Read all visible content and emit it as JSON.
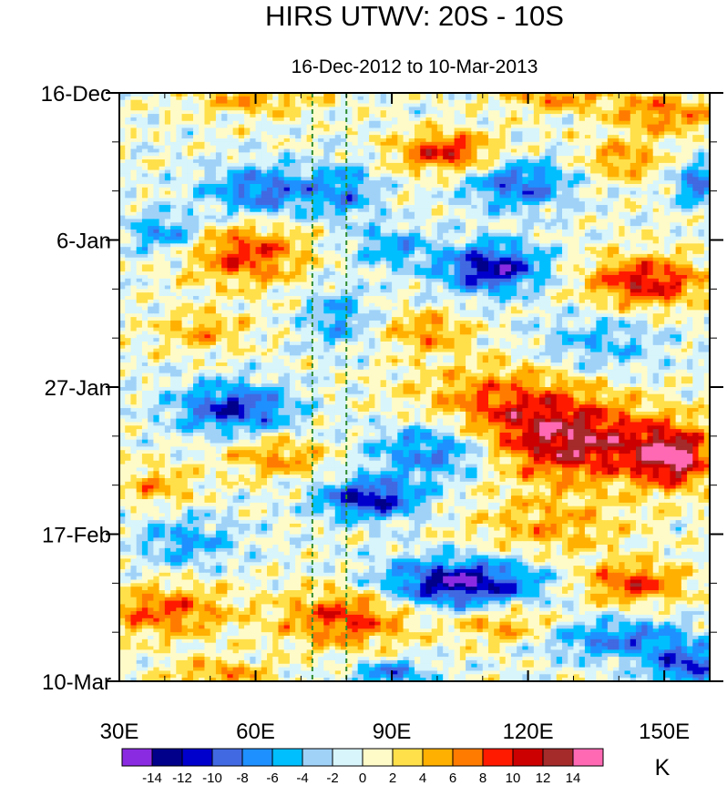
{
  "chart_data": {
    "type": "heatmap",
    "title": "HIRS UTWV: 20S - 10S",
    "subtitle": "16-Dec-2012 to 10-Mar-2013",
    "x_axis": {
      "label": "",
      "range": [
        30,
        160
      ],
      "ticks": [
        {
          "value": 30,
          "label": "30E"
        },
        {
          "value": 60,
          "label": "60E"
        },
        {
          "value": 90,
          "label": "90E"
        },
        {
          "value": 120,
          "label": "120E"
        },
        {
          "value": 150,
          "label": "150E"
        }
      ]
    },
    "y_axis": {
      "label": "",
      "range_days": [
        0,
        84
      ],
      "direction": "time increases downward",
      "ticks": [
        {
          "value": 0,
          "label": "16-Dec"
        },
        {
          "value": 21,
          "label": "6-Jan"
        },
        {
          "value": 42,
          "label": "27-Jan"
        },
        {
          "value": 63,
          "label": "17-Feb"
        },
        {
          "value": 84,
          "label": "10-Mar"
        }
      ]
    },
    "reference_lines": [
      {
        "axis": "x",
        "value": 72.5,
        "style": "dashed",
        "color": "#2e8b2e"
      },
      {
        "axis": "x",
        "value": 80,
        "style": "dashed",
        "color": "#2e8b2e"
      }
    ],
    "colorbar": {
      "unit": "K",
      "levels": [
        -14,
        -12,
        -10,
        -8,
        -6,
        -4,
        -2,
        0,
        2,
        4,
        6,
        8,
        10,
        12,
        14
      ],
      "colors": [
        "#8a2be2",
        "#00008b",
        "#0000cd",
        "#4169e1",
        "#1e90ff",
        "#00bfff",
        "#a0d2f8",
        "#d7f5fb",
        "#fffbc8",
        "#ffe04a",
        "#ffb000",
        "#ff7b00",
        "#ff1a00",
        "#cc0000",
        "#a52a2a",
        "#ff69b4"
      ],
      "tick_labels": [
        "-14",
        "-12",
        "-10",
        "-8",
        "-6",
        "-4",
        "-2",
        "0",
        "2",
        "4",
        "6",
        "8",
        "10",
        "12",
        "14"
      ]
    },
    "features": [
      {
        "lon": 127,
        "day": 0.5,
        "amp": 6,
        "sx": 9,
        "sy": 1.5
      },
      {
        "lon": 150,
        "day": 3,
        "amp": 7,
        "sx": 8,
        "sy": 2
      },
      {
        "lon": 60,
        "day": 1,
        "amp": 5,
        "sx": 10,
        "sy": 1.5
      },
      {
        "lon": 102,
        "day": 8.5,
        "amp": 10,
        "sx": 8,
        "sy": 2
      },
      {
        "lon": 141,
        "day": 9.5,
        "amp": 6,
        "sx": 6,
        "sy": 2
      },
      {
        "lon": 62,
        "day": 14,
        "amp": -9,
        "sx": 9,
        "sy": 2.5
      },
      {
        "lon": 80,
        "day": 14,
        "amp": -6,
        "sx": 5,
        "sy": 3
      },
      {
        "lon": 118,
        "day": 13,
        "amp": -9,
        "sx": 8,
        "sy": 2.5
      },
      {
        "lon": 158,
        "day": 13,
        "amp": -9,
        "sx": 4,
        "sy": 2
      },
      {
        "lon": 40,
        "day": 20,
        "amp": -7,
        "sx": 6,
        "sy": 2
      },
      {
        "lon": 58,
        "day": 23,
        "amp": 9,
        "sx": 9,
        "sy": 3
      },
      {
        "lon": 112,
        "day": 25,
        "amp": -13,
        "sx": 8,
        "sy": 2.5
      },
      {
        "lon": 146,
        "day": 27,
        "amp": 11,
        "sx": 9,
        "sy": 2.5
      },
      {
        "lon": 90,
        "day": 22,
        "amp": -6,
        "sx": 6,
        "sy": 2
      },
      {
        "lon": 78,
        "day": 32,
        "amp": -6,
        "sx": 5,
        "sy": 3
      },
      {
        "lon": 98,
        "day": 34,
        "amp": 6,
        "sx": 6,
        "sy": 2
      },
      {
        "lon": 48,
        "day": 34,
        "amp": 5,
        "sx": 7,
        "sy": 2
      },
      {
        "lon": 135,
        "day": 36,
        "amp": -5,
        "sx": 10,
        "sy": 3
      },
      {
        "lon": 55,
        "day": 45,
        "amp": -11,
        "sx": 9,
        "sy": 2.5
      },
      {
        "lon": 115,
        "day": 44,
        "amp": 7,
        "sx": 14,
        "sy": 4
      },
      {
        "lon": 130,
        "day": 50,
        "amp": 12,
        "sx": 14,
        "sy": 4
      },
      {
        "lon": 152,
        "day": 52,
        "amp": 13,
        "sx": 6,
        "sy": 3
      },
      {
        "lon": 100,
        "day": 51,
        "amp": -9,
        "sx": 10,
        "sy": 3
      },
      {
        "lon": 85,
        "day": 58,
        "amp": -12,
        "sx": 8,
        "sy": 2
      },
      {
        "lon": 65,
        "day": 52,
        "amp": 6,
        "sx": 8,
        "sy": 2
      },
      {
        "lon": 38,
        "day": 56,
        "amp": 5,
        "sx": 6,
        "sy": 2
      },
      {
        "lon": 125,
        "day": 62,
        "amp": 5,
        "sx": 12,
        "sy": 3
      },
      {
        "lon": 45,
        "day": 64,
        "amp": -6,
        "sx": 8,
        "sy": 2.5
      },
      {
        "lon": 105,
        "day": 70,
        "amp": -14,
        "sx": 12,
        "sy": 2.5
      },
      {
        "lon": 143,
        "day": 70,
        "amp": 9,
        "sx": 8,
        "sy": 2
      },
      {
        "lon": 40,
        "day": 74,
        "amp": 8,
        "sx": 10,
        "sy": 2.5
      },
      {
        "lon": 80,
        "day": 75,
        "amp": 9,
        "sx": 10,
        "sy": 3
      },
      {
        "lon": 115,
        "day": 76,
        "amp": 6,
        "sx": 8,
        "sy": 2
      },
      {
        "lon": 140,
        "day": 78,
        "amp": -8,
        "sx": 12,
        "sy": 2
      },
      {
        "lon": 155,
        "day": 82,
        "amp": -10,
        "sx": 6,
        "sy": 2
      },
      {
        "lon": 90,
        "day": 83,
        "amp": -8,
        "sx": 6,
        "sy": 1.5
      },
      {
        "lon": 52,
        "day": 83,
        "amp": 6,
        "sx": 8,
        "sy": 1.5
      }
    ]
  }
}
